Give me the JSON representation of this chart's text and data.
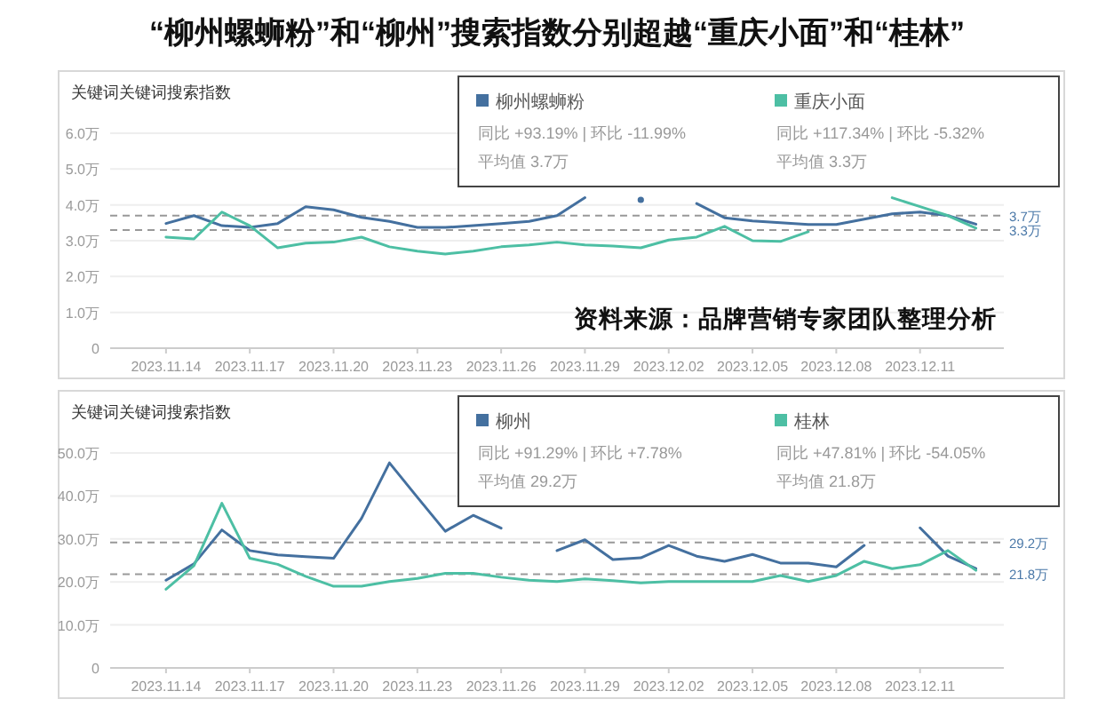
{
  "chart_data": [
    {
      "type": "line",
      "title": "“柳州螺蛳粉”和“柳州”搜索指数分别超越“重庆小面”和“桂林”",
      "ylabel": "关键词关键词搜索指数",
      "x": [
        "2023-11-14",
        "2023-11-15",
        "2023-11-16",
        "2023-11-17",
        "2023-11-18",
        "2023-11-19",
        "2023-11-20",
        "2023-11-21",
        "2023-11-22",
        "2023-11-23",
        "2023-11-24",
        "2023-11-25",
        "2023-11-26",
        "2023-11-27",
        "2023-11-28",
        "2023-11-29",
        "2023-11-30",
        "2023-12-01",
        "2023-12-02",
        "2023-12-03",
        "2023-12-04",
        "2023-12-05",
        "2023-12-06",
        "2023-12-07",
        "2023-12-08",
        "2023-12-09",
        "2023-12-10",
        "2023-12-11",
        "2023-12-12",
        "2023-12-13"
      ],
      "series": [
        {
          "name": "柳州螺蛳粉",
          "color": "#44709f",
          "values": [
            3.48,
            3.7,
            3.42,
            3.37,
            3.48,
            3.95,
            3.86,
            3.65,
            3.54,
            3.37,
            3.37,
            3.42,
            3.48,
            3.54,
            3.7,
            4.2,
            null,
            4.14,
            null,
            4.04,
            3.64,
            3.55,
            3.5,
            3.45,
            3.45,
            3.6,
            3.75,
            3.8,
            3.7,
            3.46
          ]
        },
        {
          "name": "重庆小面",
          "color": "#4dbfa4",
          "values": [
            3.1,
            3.05,
            3.8,
            3.42,
            2.8,
            2.93,
            2.96,
            3.1,
            2.83,
            2.71,
            2.63,
            2.71,
            2.83,
            2.88,
            2.96,
            2.88,
            2.85,
            2.8,
            3.02,
            3.1,
            3.4,
            3.0,
            2.98,
            3.25,
            null,
            null,
            4.2,
            3.95,
            3.7,
            3.35
          ]
        }
      ],
      "xlim": [
        "2023-11-12",
        "2023-12-14"
      ],
      "xticks": [
        {
          "value": "2023-11-14",
          "label": "2023.11.14"
        },
        {
          "value": "2023-11-17",
          "label": "2023.11.17"
        },
        {
          "value": "2023-11-20",
          "label": "2023.11.20"
        },
        {
          "value": "2023-11-23",
          "label": "2023.11.23"
        },
        {
          "value": "2023-11-26",
          "label": "2023.11.26"
        },
        {
          "value": "2023-11-29",
          "label": "2023.11.29"
        },
        {
          "value": "2023-12-02",
          "label": "2023.12.02"
        },
        {
          "value": "2023-12-05",
          "label": "2023.12.05"
        },
        {
          "value": "2023-12-08",
          "label": "2023.12.08"
        },
        {
          "value": "2023-12-11",
          "label": "2023.12.11"
        }
      ],
      "ylim": [
        0,
        6
      ],
      "yticks": [
        0,
        {
          "value": 1,
          "label": "1.0万"
        },
        {
          "value": 2,
          "label": "2.0万"
        },
        {
          "value": 3,
          "label": "3.0万"
        },
        {
          "value": 4,
          "label": "4.0万"
        },
        {
          "value": 5,
          "label": "5.0万"
        },
        {
          "value": 6,
          "label": "6.0万"
        }
      ],
      "ref_lines": [
        {
          "axis": "y",
          "value": 3.7,
          "label": "3.7万"
        },
        {
          "axis": "y",
          "value": 3.3,
          "label": "3.3万"
        }
      ],
      "annotations": [
        "同比 +93.19% | 环比 -11.99%",
        "平均值 3.7万",
        "同比 +117.34% | 环比 -5.32%",
        "平均值 3.3万",
        "资料来源：品牌营销专家团队整理分析"
      ],
      "grid": "y",
      "legend": "top right"
    },
    {
      "type": "line",
      "ylabel": "关键词关键词搜索指数",
      "x": [
        "2023-11-14",
        "2023-11-15",
        "2023-11-16",
        "2023-11-17",
        "2023-11-18",
        "2023-11-19",
        "2023-11-20",
        "2023-11-21",
        "2023-11-22",
        "2023-11-23",
        "2023-11-24",
        "2023-11-25",
        "2023-11-26",
        "2023-11-27",
        "2023-11-28",
        "2023-11-29",
        "2023-11-30",
        "2023-12-01",
        "2023-12-02",
        "2023-12-03",
        "2023-12-04",
        "2023-12-05",
        "2023-12-06",
        "2023-12-07",
        "2023-12-08",
        "2023-12-09",
        "2023-12-10",
        "2023-12-11",
        "2023-12-12",
        "2023-12-13"
      ],
      "series": [
        {
          "name": "柳州",
          "color": "#44709f",
          "values": [
            20.4,
            24.2,
            32.1,
            27.3,
            26.3,
            25.9,
            25.5,
            34.8,
            47.7,
            39.7,
            31.8,
            35.5,
            32.5,
            null,
            27.3,
            29.8,
            25.2,
            25.6,
            28.5,
            26,
            24.8,
            26.4,
            24.4,
            24.4,
            23.5,
            28.5,
            null,
            32.6,
            26,
            23.1
          ]
        },
        {
          "name": "桂林",
          "color": "#4dbfa4",
          "values": [
            18.3,
            23.8,
            38.3,
            25.5,
            24.1,
            21.3,
            19,
            19,
            20.1,
            20.8,
            22,
            22,
            21.1,
            20.4,
            20.1,
            20.7,
            20.3,
            19.8,
            20.1,
            20.1,
            20.1,
            20.1,
            21.5,
            20.1,
            21.5,
            24.8,
            23.1,
            24,
            27.3,
            22.7
          ]
        }
      ],
      "xlim": [
        "2023-11-12",
        "2023-12-14"
      ],
      "xticks": [
        {
          "value": "2023-11-14",
          "label": "2023.11.14"
        },
        {
          "value": "2023-11-17",
          "label": "2023.11.17"
        },
        {
          "value": "2023-11-20",
          "label": "2023.11.20"
        },
        {
          "value": "2023-11-23",
          "label": "2023.11.23"
        },
        {
          "value": "2023-11-26",
          "label": "2023.11.26"
        },
        {
          "value": "2023-11-29",
          "label": "2023.11.29"
        },
        {
          "value": "2023-12-02",
          "label": "2023.12.02"
        },
        {
          "value": "2023-12-05",
          "label": "2023.12.05"
        },
        {
          "value": "2023-12-08",
          "label": "2023.12.08"
        },
        {
          "value": "2023-12-11",
          "label": "2023.12.11"
        }
      ],
      "ylim": [
        0,
        50
      ],
      "yticks": [
        0,
        {
          "value": 10,
          "label": "10.0万"
        },
        {
          "value": 20,
          "label": "20.0万"
        },
        {
          "value": 30,
          "label": "30.0万"
        },
        {
          "value": 40,
          "label": "40.0万"
        },
        {
          "value": 50,
          "label": "50.0万"
        }
      ],
      "ref_lines": [
        {
          "axis": "y",
          "value": 29.2,
          "label": "29.2万"
        },
        {
          "axis": "y",
          "value": 21.8,
          "label": "21.8万"
        }
      ],
      "annotations": [
        "同比 +91.29% | 环比 +7.78%",
        "平均值 29.2万",
        "同比 +47.81% | 环比 -54.05%",
        "平均值 21.8万"
      ],
      "grid": "y",
      "legend": "top right"
    }
  ]
}
